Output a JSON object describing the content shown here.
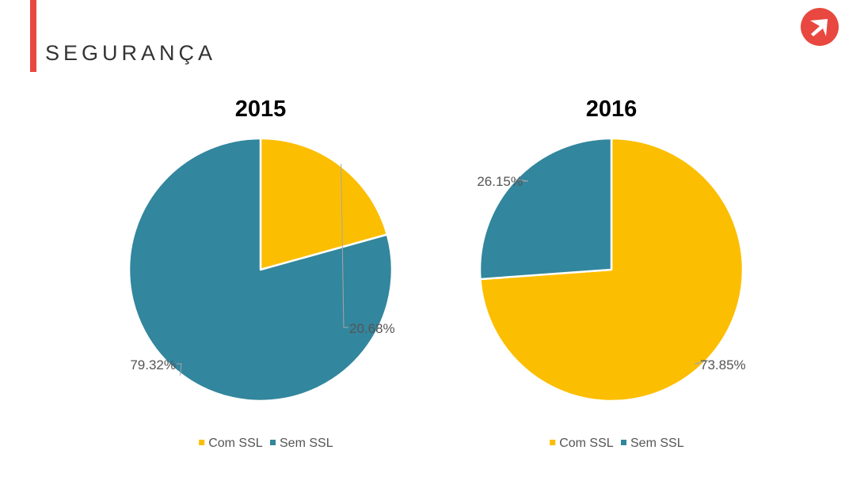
{
  "page": {
    "title": "SEGURANÇA",
    "logo_icon": "arrow-logo-icon"
  },
  "colors": {
    "accent": "#e8483f",
    "com_ssl": "#fcbe00",
    "sem_ssl": "#32869d",
    "leader": "#a6a6a6"
  },
  "chart_data": [
    {
      "type": "pie",
      "title": "2015",
      "categories": [
        "Com SSL",
        "Sem SSL"
      ],
      "values": [
        20.68,
        79.32
      ],
      "data_labels": [
        "20.68%",
        "79.32%"
      ],
      "legend": "bottom"
    },
    {
      "type": "pie",
      "title": "2016",
      "categories": [
        "Com SSL",
        "Sem SSL"
      ],
      "values": [
        73.85,
        26.15
      ],
      "data_labels": [
        "73.85%",
        "26.15%"
      ],
      "legend": "bottom"
    }
  ]
}
